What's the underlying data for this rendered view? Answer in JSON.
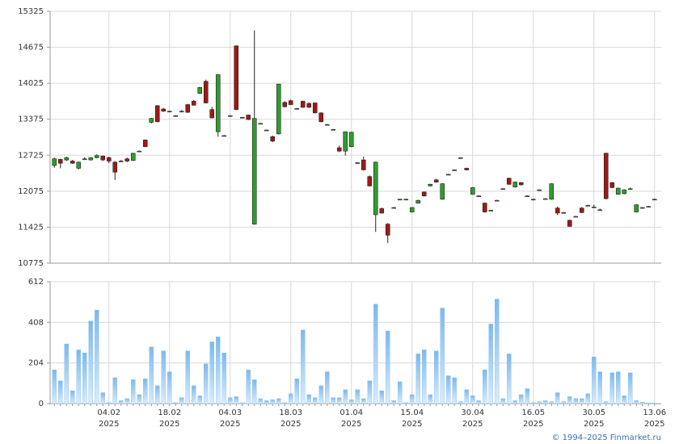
{
  "chart_data": [
    {
      "type": "candlestick",
      "ylim": [
        10775,
        15325
      ],
      "yticks": [
        10775,
        11425,
        12075,
        12725,
        13375,
        14025,
        14675,
        15325
      ],
      "grid": true,
      "up_color": "#2e9e2e",
      "down_color": "#a01818",
      "open": [
        12540,
        12650,
        12640,
        12620,
        12490,
        12660,
        12640,
        12680,
        12710,
        12680,
        12600,
        12620,
        12660,
        12630,
        12800,
        13000,
        13320,
        13620,
        13560,
        13520,
        13440,
        13520,
        13640,
        13700,
        13840,
        14060,
        13550,
        13150,
        13080,
        13440,
        14700,
        13410,
        13450,
        11480,
        13300,
        13180,
        13060,
        13110,
        13680,
        13710,
        13570,
        13700,
        13660,
        13670,
        13490,
        13280,
        13190,
        12860,
        12800,
        12880,
        12590,
        12640,
        12340,
        11650,
        11760,
        11480,
        11780,
        11930,
        11930,
        11700,
        11860,
        12060,
        12170,
        12280,
        11930,
        12380,
        12460,
        12680,
        12490,
        12020,
        11990,
        11860,
        11730,
        11910,
        12120,
        12310,
        12150,
        12230,
        11990,
        11930,
        12100,
        11940,
        11930,
        11770,
        11690,
        11550,
        11620,
        11770,
        11820,
        11790,
        11740,
        12760,
        12230,
        12020,
        12030,
        12120,
        11700,
        11780,
        11800,
        11930
      ],
      "high": [
        12680,
        12660,
        12700,
        12640,
        12610,
        12690,
        12690,
        12740,
        12720,
        12700,
        12620,
        12640,
        12680,
        12770,
        12810,
        13010,
        13400,
        13630,
        13580,
        13530,
        13450,
        13540,
        13650,
        13720,
        13960,
        14090,
        13600,
        14190,
        13090,
        13450,
        14710,
        13420,
        13460,
        14980,
        13310,
        13190,
        13080,
        14010,
        13700,
        13730,
        13580,
        13710,
        13680,
        13680,
        13500,
        13290,
        13200,
        12900,
        13150,
        13150,
        12600,
        12700,
        12360,
        12610,
        11780,
        11500,
        11790,
        11940,
        11940,
        11790,
        11920,
        12070,
        12210,
        12300,
        12220,
        12390,
        12470,
        12690,
        12500,
        12150,
        12000,
        11870,
        11740,
        11920,
        12130,
        12320,
        12250,
        12240,
        12000,
        11940,
        12110,
        11950,
        12220,
        11800,
        11700,
        11560,
        11630,
        11790,
        11830,
        11830,
        11760,
        12770,
        12240,
        12140,
        12110,
        12140,
        11840,
        11790,
        11810,
        11940
      ],
      "low": [
        12500,
        12490,
        12620,
        12570,
        12470,
        12640,
        12630,
        12670,
        12620,
        12580,
        12280,
        12600,
        12600,
        12620,
        12790,
        12870,
        13300,
        13320,
        13510,
        13510,
        13430,
        13500,
        13490,
        13620,
        13830,
        13660,
        13390,
        13060,
        13070,
        13430,
        13540,
        13400,
        13360,
        11470,
        13290,
        13170,
        12960,
        13100,
        13590,
        13630,
        13560,
        13580,
        13580,
        13480,
        13320,
        13270,
        13180,
        12780,
        12720,
        12870,
        12580,
        12450,
        12160,
        11340,
        11670,
        11140,
        11770,
        11920,
        11920,
        11690,
        11850,
        11980,
        12160,
        12230,
        11920,
        12370,
        12450,
        12670,
        12450,
        12010,
        11980,
        11690,
        11720,
        11900,
        12110,
        12190,
        12140,
        12180,
        11980,
        11920,
        12090,
        11930,
        11920,
        11640,
        11680,
        11430,
        11610,
        11680,
        11810,
        11780,
        11730,
        11930,
        12130,
        12010,
        12020,
        12110,
        11690,
        11770,
        11790,
        11920
      ],
      "close": [
        12660,
        12580,
        12680,
        12580,
        12600,
        12660,
        12680,
        12720,
        12640,
        12620,
        12420,
        12620,
        12620,
        12760,
        12800,
        12880,
        13390,
        13330,
        13520,
        13520,
        13440,
        13520,
        13500,
        13630,
        13950,
        13670,
        13400,
        14180,
        13080,
        13440,
        13550,
        13410,
        13370,
        13390,
        13300,
        13180,
        12980,
        14010,
        13600,
        13640,
        13570,
        13590,
        13590,
        13490,
        13330,
        13280,
        13190,
        12800,
        13150,
        13140,
        12590,
        12460,
        12170,
        12600,
        11680,
        11280,
        11780,
        11930,
        11930,
        11780,
        11910,
        11990,
        12200,
        12240,
        12210,
        12380,
        12460,
        12680,
        12460,
        12140,
        11990,
        11700,
        11730,
        11910,
        12120,
        12200,
        12240,
        12190,
        11990,
        11930,
        12100,
        11940,
        12210,
        11680,
        11690,
        11440,
        11620,
        11690,
        11820,
        11790,
        11740,
        11940,
        12140,
        12130,
        12100,
        12120,
        11830,
        11780,
        11800,
        11930
      ]
    },
    {
      "type": "bar",
      "ylim": [
        0,
        612
      ],
      "yticks": [
        0,
        204,
        408,
        612
      ],
      "grid": true,
      "color": "#7cb9ec",
      "categories": [
        null,
        null,
        null,
        null,
        null,
        null,
        null,
        null,
        null,
        "04.02",
        null,
        null,
        null,
        null,
        null,
        null,
        null,
        null,
        null,
        "18.02",
        null,
        null,
        null,
        null,
        null,
        null,
        null,
        null,
        null,
        "04.03",
        null,
        null,
        null,
        null,
        null,
        null,
        null,
        null,
        null,
        "18.03",
        null,
        null,
        null,
        null,
        null,
        null,
        null,
        null,
        null,
        "01.04",
        null,
        null,
        null,
        null,
        null,
        null,
        null,
        null,
        null,
        "15.04",
        null,
        null,
        null,
        null,
        null,
        null,
        null,
        null,
        null,
        "30.04",
        null,
        null,
        null,
        null,
        null,
        null,
        null,
        null,
        null,
        "16.05",
        null,
        null,
        null,
        null,
        null,
        null,
        null,
        null,
        null,
        "30.05",
        null,
        null,
        null,
        null,
        null,
        null,
        null,
        null,
        null,
        "13.06"
      ],
      "x_sublabel": "2025",
      "values": [
        170,
        115,
        300,
        65,
        270,
        255,
        415,
        470,
        55,
        5,
        130,
        15,
        25,
        120,
        45,
        125,
        285,
        90,
        265,
        160,
        5,
        30,
        265,
        90,
        40,
        200,
        310,
        335,
        255,
        30,
        35,
        5,
        170,
        120,
        25,
        15,
        20,
        25,
        5,
        50,
        125,
        370,
        45,
        30,
        90,
        160,
        30,
        30,
        70,
        20,
        70,
        25,
        115,
        500,
        65,
        365,
        15,
        110,
        5,
        45,
        250,
        270,
        45,
        265,
        480,
        140,
        130,
        10,
        70,
        40,
        15,
        170,
        400,
        525,
        25,
        250,
        15,
        45,
        75,
        5,
        10,
        15,
        10,
        55,
        10,
        35,
        25,
        25,
        50,
        235,
        160,
        10,
        155,
        160,
        40,
        155,
        15,
        8,
        4,
        3
      ]
    }
  ],
  "footer": "© 1994–2025 Finmarket.ru"
}
